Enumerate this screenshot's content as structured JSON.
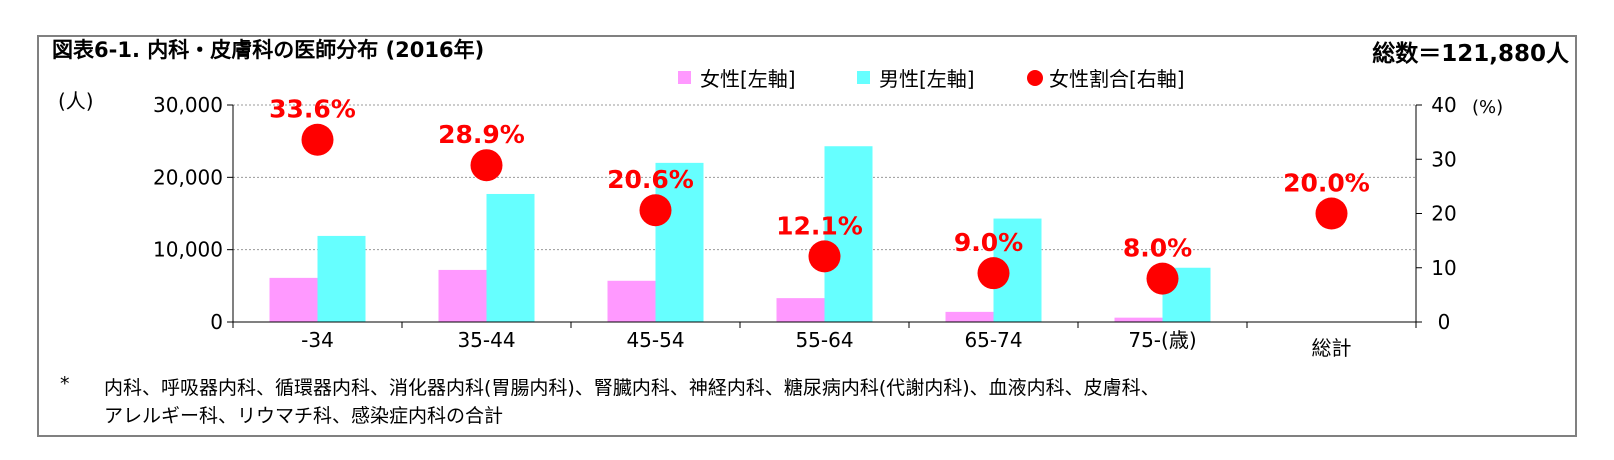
{
  "header": {
    "title": "図表6-1. 内科・皮膚科の医師分布 (2016年)",
    "total": "総数＝121,880人"
  },
  "notes": {
    "star": "*",
    "line1": "内科、呼吸器内科、循環器内科、消化器内科(胃腸内科)、腎臓内科、神経内科、糖尿病内科(代謝内科)、血液内科、皮膚科、",
    "line2": "アレルギー科、リウマチ科、感染症内科の合計"
  },
  "chart_data": {
    "type": "bar",
    "categories": [
      "-34",
      "35-44",
      "45-54",
      "55-64",
      "65-74",
      "75-(歳)",
      "総計"
    ],
    "series": [
      {
        "name": "女性[左軸]",
        "axis": "left",
        "color": "#ff99ff",
        "values": [
          6100,
          7200,
          5700,
          3300,
          1400,
          600,
          null
        ]
      },
      {
        "name": "男性[左軸]",
        "axis": "left",
        "color": "#66ffff",
        "values": [
          11900,
          17700,
          22000,
          24300,
          14300,
          7500,
          null
        ]
      },
      {
        "name": "女性割合[右軸]",
        "axis": "right",
        "color": "#ff0000",
        "marker": "circle",
        "values": [
          33.6,
          28.9,
          20.6,
          12.1,
          9.0,
          8.0,
          20.0
        ],
        "labels": [
          "33.6%",
          "28.9%",
          "20.6%",
          "12.1%",
          "9.0%",
          "8.0%",
          "20.0%"
        ]
      }
    ],
    "y_left": {
      "label": "(人)",
      "ylim": [
        0,
        30000
      ],
      "ticks": [
        0,
        10000,
        20000,
        30000
      ],
      "tick_labels": [
        "0",
        "10,000",
        "20,000",
        "30,000"
      ]
    },
    "y_right": {
      "label": "(%)",
      "ylim": [
        0,
        40
      ],
      "ticks": [
        0,
        10,
        20,
        30,
        40
      ],
      "tick_labels": [
        "0",
        "10",
        "20",
        "30",
        "40"
      ]
    },
    "grid": true,
    "legend_position": "top"
  }
}
